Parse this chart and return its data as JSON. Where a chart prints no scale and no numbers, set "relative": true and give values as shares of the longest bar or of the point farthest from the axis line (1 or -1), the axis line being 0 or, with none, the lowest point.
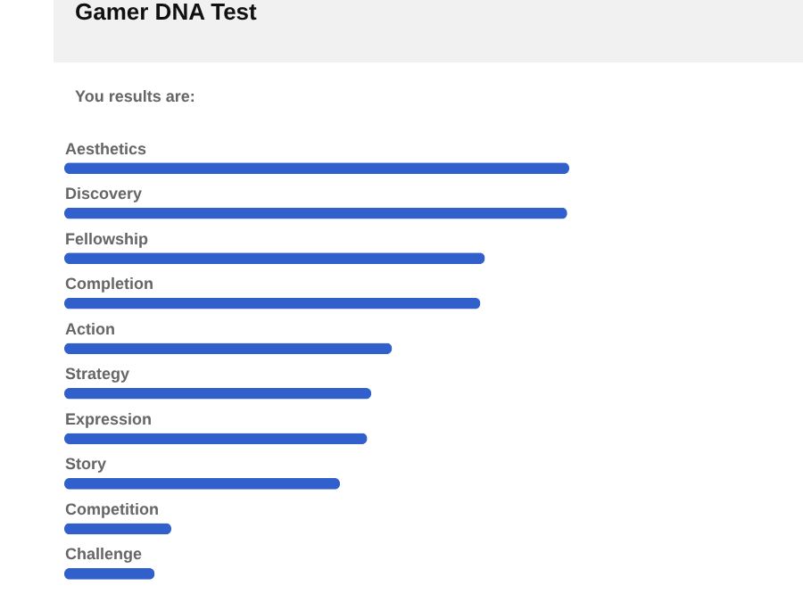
{
  "chart_data": {
    "type": "bar",
    "title": "Gamer DNA Test",
    "subtitle": "You results are:",
    "orientation": "horizontal",
    "relative": true,
    "color": "#3160cc",
    "categories": [
      "Aesthetics",
      "Discovery",
      "Fellowship",
      "Completion",
      "Action",
      "Strategy",
      "Expression",
      "Story",
      "Competition",
      "Challenge"
    ],
    "values": [
      1,
      0.996,
      0.833,
      0.824,
      0.649,
      0.608,
      0.6,
      0.546,
      0.212,
      0.179
    ]
  }
}
